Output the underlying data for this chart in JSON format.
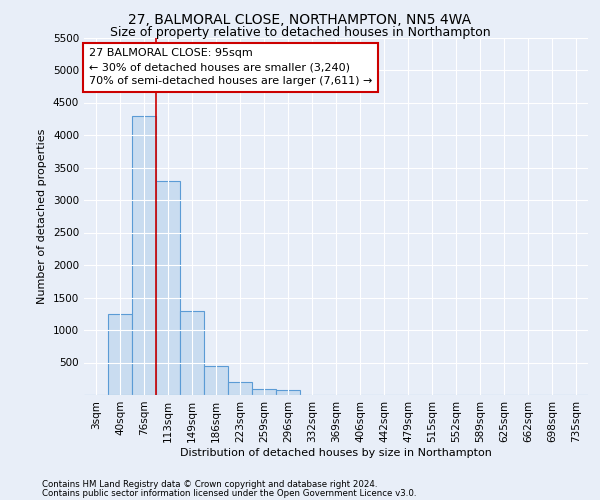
{
  "title": "27, BALMORAL CLOSE, NORTHAMPTON, NN5 4WA",
  "subtitle": "Size of property relative to detached houses in Northampton",
  "xlabel": "Distribution of detached houses by size in Northampton",
  "ylabel": "Number of detached properties",
  "footnote1": "Contains HM Land Registry data © Crown copyright and database right 2024.",
  "footnote2": "Contains public sector information licensed under the Open Government Licence v3.0.",
  "categories": [
    "3sqm",
    "40sqm",
    "76sqm",
    "113sqm",
    "149sqm",
    "186sqm",
    "223sqm",
    "259sqm",
    "296sqm",
    "332sqm",
    "369sqm",
    "406sqm",
    "442sqm",
    "479sqm",
    "515sqm",
    "552sqm",
    "589sqm",
    "625sqm",
    "662sqm",
    "698sqm",
    "735sqm"
  ],
  "values": [
    0,
    1250,
    4300,
    3300,
    1300,
    450,
    200,
    100,
    70,
    0,
    0,
    0,
    0,
    0,
    0,
    0,
    0,
    0,
    0,
    0,
    0
  ],
  "bar_color": "#c9dcf0",
  "bar_edge_color": "#5b9bd5",
  "vline_x": 2.5,
  "vline_color": "#cc0000",
  "annotation_text": "27 BALMORAL CLOSE: 95sqm\n← 30% of detached houses are smaller (3,240)\n70% of semi-detached houses are larger (7,611) →",
  "annotation_box_facecolor": "#ffffff",
  "annotation_box_edgecolor": "#cc0000",
  "ylim": [
    0,
    5500
  ],
  "yticks": [
    0,
    500,
    1000,
    1500,
    2000,
    2500,
    3000,
    3500,
    4000,
    4500,
    5000,
    5500
  ],
  "bg_color": "#e8eef8",
  "plot_bg_color": "#e8eef8",
  "grid_color": "#ffffff",
  "title_fontsize": 10,
  "subtitle_fontsize": 9,
  "axis_fontsize": 8,
  "tick_fontsize": 7.5
}
